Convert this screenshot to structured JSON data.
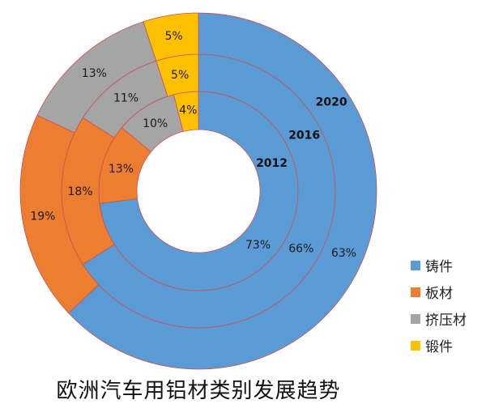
{
  "chart_data": {
    "type": "pie",
    "subtype": "multi-ring donut",
    "title": "欧洲汽车用铝材类别发展趋势",
    "categories": [
      "铸件",
      "板材",
      "挤压材",
      "锻件"
    ],
    "colors": [
      "#5b9bd5",
      "#ed7d31",
      "#a5a5a5",
      "#ffc000"
    ],
    "series": [
      {
        "name": "2012",
        "values": [
          73,
          13,
          10,
          4
        ],
        "labels": [
          "73%",
          "13%",
          "10%",
          "4%"
        ]
      },
      {
        "name": "2016",
        "values": [
          66,
          18,
          11,
          5
        ],
        "labels": [
          "66%",
          "18%",
          "11%",
          "5%"
        ]
      },
      {
        "name": "2020",
        "values": [
          63,
          19,
          13,
          5
        ],
        "labels": [
          "63%",
          "19%",
          "13%",
          "5%"
        ]
      }
    ],
    "legend_position": "bottom-right",
    "border_color": "#c9524f"
  }
}
